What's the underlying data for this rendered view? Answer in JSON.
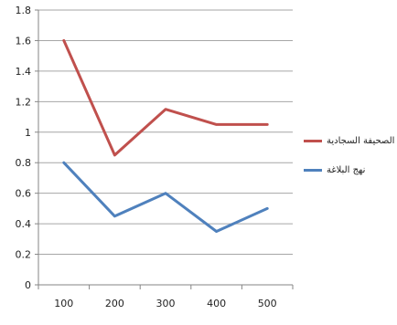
{
  "chart_data": {
    "type": "line",
    "x": [
      100,
      200,
      300,
      400,
      500
    ],
    "series": [
      {
        "name": "الصحيفة السجادية",
        "color": "#c0504d",
        "values": [
          1.6,
          0.85,
          1.15,
          1.05,
          1.05
        ]
      },
      {
        "name": "نهج البلاغة",
        "color": "#4f81bd",
        "values": [
          0.8,
          0.45,
          0.6,
          0.35,
          0.5
        ]
      }
    ],
    "ylim": [
      0,
      1.8
    ],
    "yticks": [
      "0",
      "0.2",
      "0.4",
      "0.6",
      "0.8",
      "1",
      "1.2",
      "1.4",
      "1.6",
      "1.8"
    ],
    "xticks": [
      "100",
      "200",
      "300",
      "400",
      "500"
    ],
    "grid": true,
    "legend": "right"
  }
}
